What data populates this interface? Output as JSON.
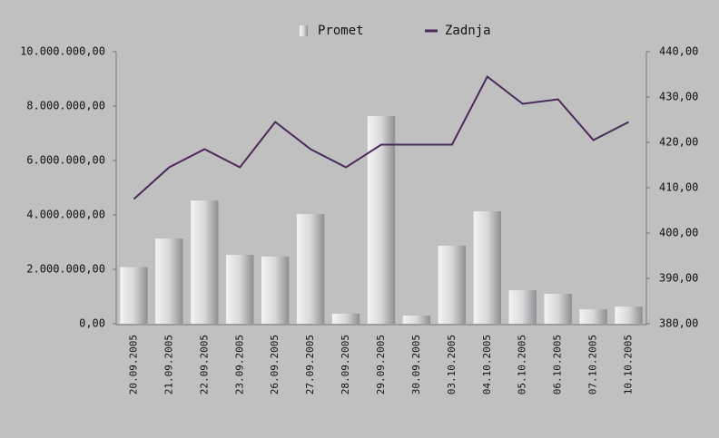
{
  "chart_data": {
    "type": "bar-line",
    "categories": [
      "20.09.2005",
      "21.09.2005",
      "22.09.2005",
      "23.09.2005",
      "26.09.2005",
      "27.09.2005",
      "28.09.2005",
      "29.09.2005",
      "30.09.2005",
      "03.10.2005",
      "04.10.2005",
      "05.10.2005",
      "06.10.2005",
      "07.10.2005",
      "10.10.2005"
    ],
    "series": [
      {
        "name": "Promet",
        "type": "bar",
        "color": "#8e8e90",
        "values": [
          2080000,
          3130000,
          4530000,
          2530000,
          2470000,
          4030000,
          370000,
          7630000,
          300000,
          2870000,
          4130000,
          1230000,
          1100000,
          530000,
          630000
        ]
      },
      {
        "name": "Zadnja",
        "type": "line",
        "axis": "y2",
        "color": "#4a2a58",
        "values": [
          407.5,
          414.5,
          418.5,
          414.5,
          424.5,
          418.5,
          414.5,
          419.5,
          419.5,
          419.5,
          434.5,
          428.5,
          429.5,
          420.5,
          424.5
        ]
      }
    ],
    "ylim": [
      0,
      10000000
    ],
    "yticks": [
      {
        "value": 0,
        "label": "0,00"
      },
      {
        "value": 2000000,
        "label": "2.000.000,00"
      },
      {
        "value": 4000000,
        "label": "4.000.000,00"
      },
      {
        "value": 6000000,
        "label": "6.000.000,00"
      },
      {
        "value": 8000000,
        "label": "8.000.000,00"
      },
      {
        "value": 10000000,
        "label": "10.000.000,00"
      }
    ],
    "y2lim": [
      380,
      440
    ],
    "y2ticks": [
      {
        "value": 380,
        "label": "380,00"
      },
      {
        "value": 390,
        "label": "390,00"
      },
      {
        "value": 400,
        "label": "400,00"
      },
      {
        "value": 410,
        "label": "410,00"
      },
      {
        "value": 420,
        "label": "420,00"
      },
      {
        "value": 430,
        "label": "430,00"
      },
      {
        "value": 440,
        "label": "440,00"
      }
    ],
    "legend": "top"
  }
}
